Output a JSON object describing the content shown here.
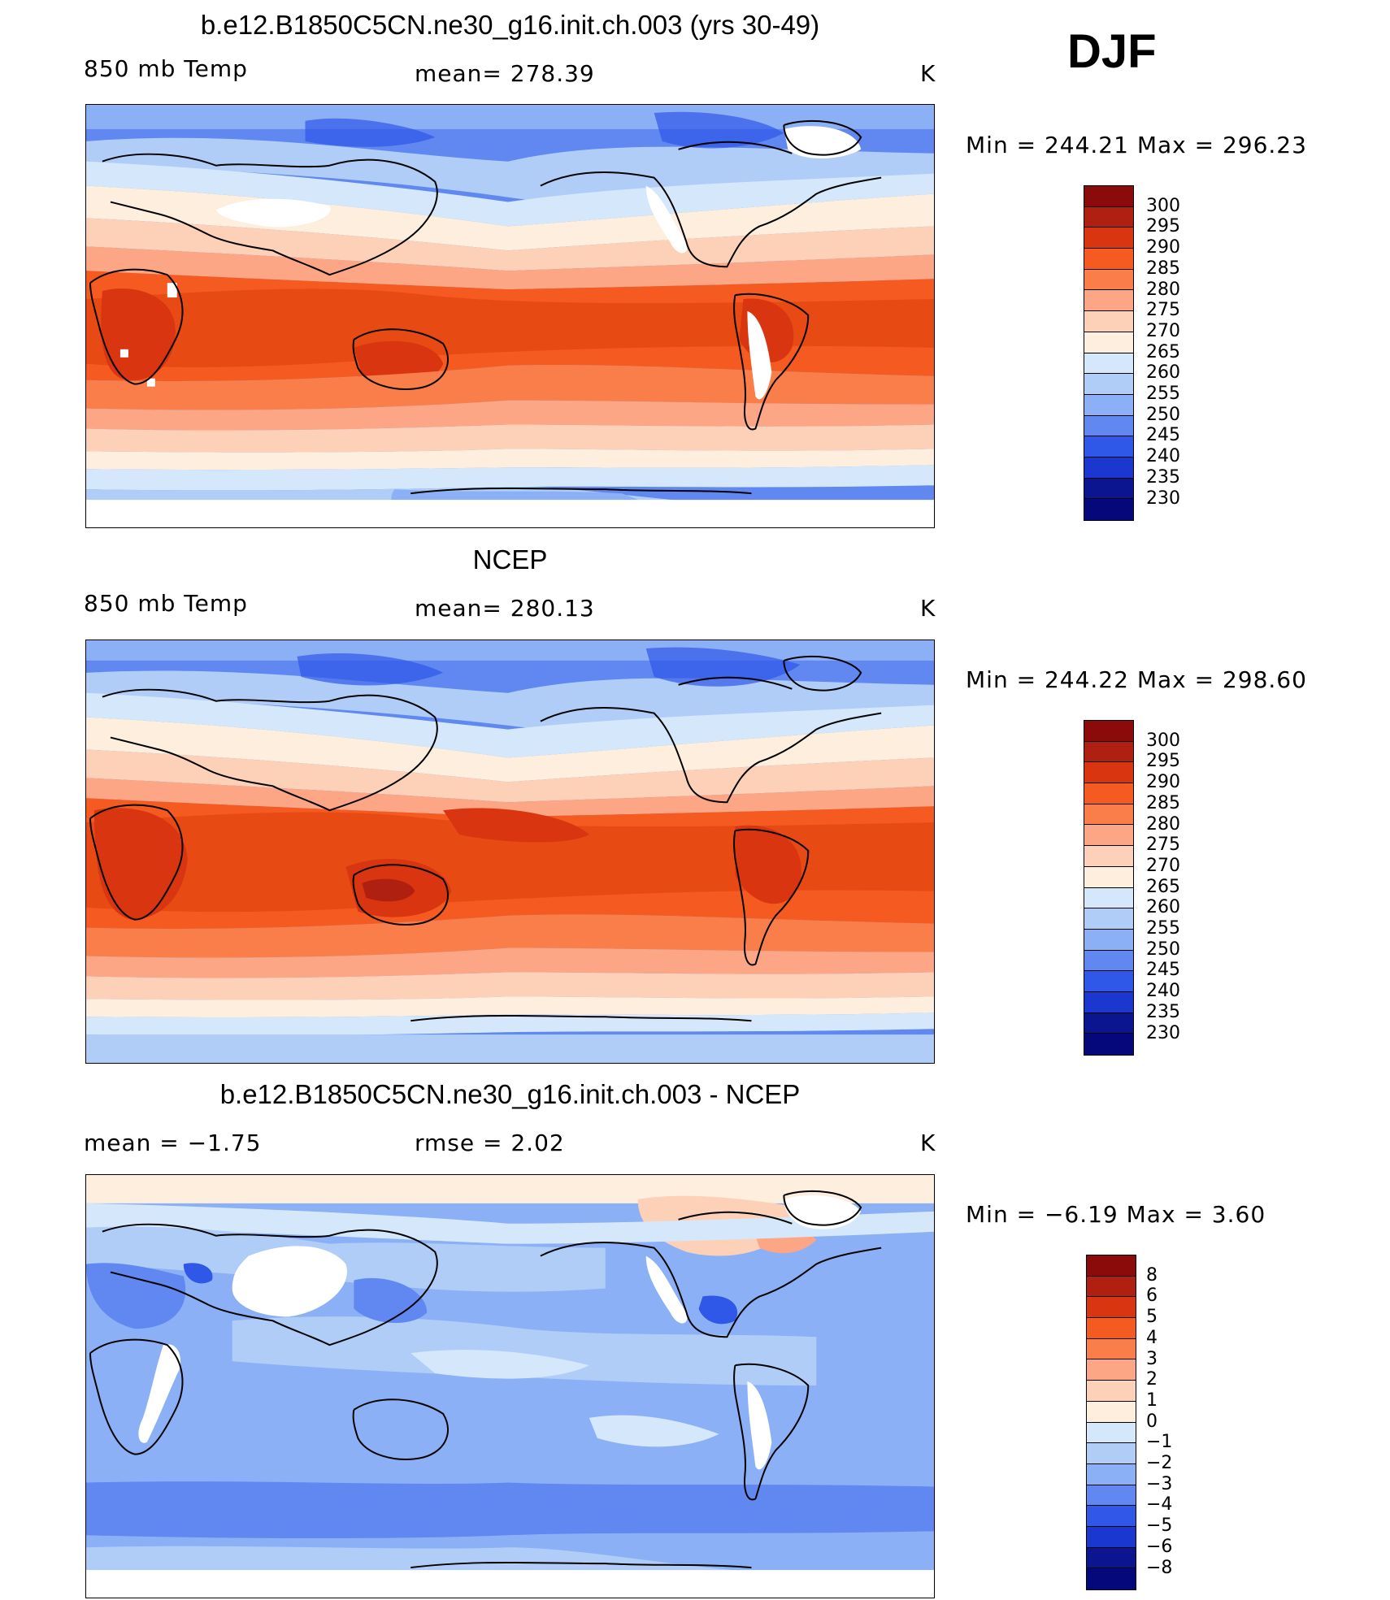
{
  "season": "DJF",
  "panels": [
    {
      "title": "b.e12.B1850C5CN.ne30_g16.init.ch.003 (yrs 30-49)",
      "left_label": "850 mb Temp",
      "center_label": "mean=  278.39",
      "right_label": "K",
      "minmax": "Min  =  244.21  Max  =  296.23",
      "legend": {
        "labels": [
          "300",
          "295",
          "290",
          "285",
          "280",
          "275",
          "270",
          "265",
          "260",
          "255",
          "250",
          "245",
          "240",
          "235",
          "230"
        ],
        "colors": [
          "#8b0a0a",
          "#b02010",
          "#d83510",
          "#f55a20",
          "#f97e4a",
          "#fca685",
          "#fdd0b8",
          "#fdeede",
          "#d5e8fb",
          "#b0cdf8",
          "#8cb0f5",
          "#6088f0",
          "#2f57e8",
          "#1a37d0",
          "#0b1590",
          "#05087a"
        ]
      }
    },
    {
      "title": "NCEP",
      "left_label": "850 mb Temp",
      "center_label": "mean=  280.13",
      "right_label": "K",
      "minmax": "Min  =  244.22  Max  =  298.60",
      "legend": {
        "labels": [
          "300",
          "295",
          "290",
          "285",
          "280",
          "275",
          "270",
          "265",
          "260",
          "255",
          "250",
          "245",
          "240",
          "235",
          "230"
        ],
        "colors": [
          "#8b0a0a",
          "#b02010",
          "#d83510",
          "#f55a20",
          "#f97e4a",
          "#fca685",
          "#fdd0b8",
          "#fdeede",
          "#d5e8fb",
          "#b0cdf8",
          "#8cb0f5",
          "#6088f0",
          "#2f57e8",
          "#1a37d0",
          "#0b1590",
          "#05087a"
        ]
      }
    },
    {
      "title": "b.e12.B1850C5CN.ne30_g16.init.ch.003 - NCEP",
      "left_label": "mean  =    −1.75",
      "center_label": "rmse  =     2.02",
      "right_label": "K",
      "minmax": "Min  =    −6.19  Max  =       3.60",
      "legend": {
        "labels": [
          "8",
          "6",
          "5",
          "4",
          "3",
          "2",
          "1",
          "0",
          "−1",
          "−2",
          "−3",
          "−4",
          "−5",
          "−6",
          "−8"
        ],
        "colors": [
          "#8b0a0a",
          "#b02010",
          "#d83510",
          "#f55a20",
          "#f97e4a",
          "#fca685",
          "#fdd0b8",
          "#fdeede",
          "#d5e8fb",
          "#b0cdf8",
          "#8cb0f5",
          "#6088f0",
          "#2f57e8",
          "#1a37d0",
          "#0b1590",
          "#05087a"
        ]
      }
    }
  ]
}
